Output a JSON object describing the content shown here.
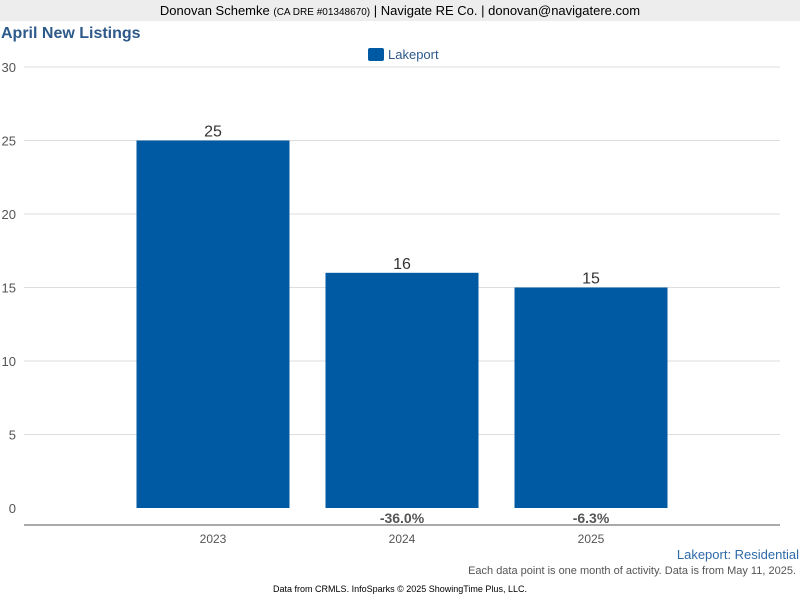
{
  "header": {
    "name": "Donovan Schemke",
    "license": "(CA DRE #01348670)",
    "rest": "| Navigate RE Co. | donovan@navigatere.com"
  },
  "colors": {
    "bar": "#005aa3",
    "title": "#2d5a8a",
    "grid": "#dddddd"
  },
  "chart_data": {
    "type": "bar",
    "title": "April New Listings",
    "legend": [
      "Lakeport"
    ],
    "categories": [
      "2023",
      "2024",
      "2025"
    ],
    "series": [
      {
        "name": "Lakeport",
        "values": [
          25,
          16,
          15
        ]
      }
    ],
    "value_labels": [
      "25",
      "16",
      "15"
    ],
    "change_labels": [
      "",
      "-36.0%",
      "-6.3%"
    ],
    "ylim": [
      0,
      30
    ],
    "yticks": [
      0,
      5,
      10,
      15,
      20,
      25,
      30
    ],
    "grid": true,
    "legend_position": "top-center",
    "xlabel": "",
    "ylabel": ""
  },
  "subtitle_right": "Lakeport: Residential",
  "note": "Each data point is one month of activity. Data is from May 11, 2025.",
  "footer": "Data from CRMLS. InfoSparks © 2025 ShowingTime Plus, LLC."
}
